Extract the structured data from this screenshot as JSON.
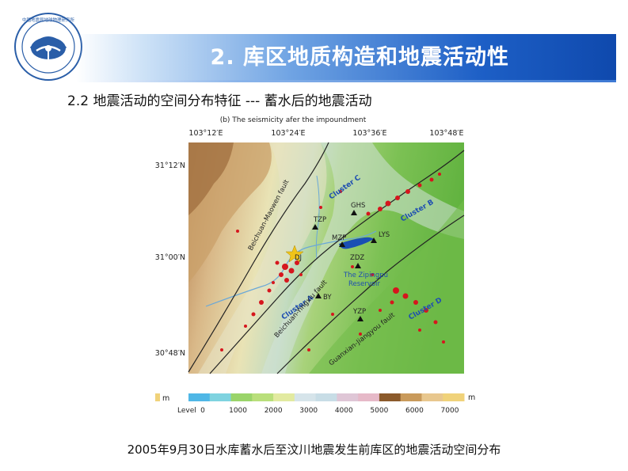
{
  "header": {
    "title": "2. 库区地质构造和地震活动性",
    "logo_text": "中国地震局地球物理研究所"
  },
  "section": {
    "subtitle": "2.2 地震活动的空间分布特征 --- 蓄水后的地震活动"
  },
  "map": {
    "panel_title": "(b) The seismicity afer the impoundment",
    "lon_labels": [
      "103°12′E",
      "103°24′E",
      "103°36′E",
      "103°48′E"
    ],
    "lat_labels": [
      "31°12′N",
      "31°00′N",
      "30°48′N"
    ],
    "clusters": [
      "Cluster C",
      "Cluster B",
      "Cluster A",
      "Cluster D"
    ],
    "stations": [
      "TZP",
      "GHS",
      "MZP",
      "LYS",
      "ZDZ",
      "BY",
      "YZP"
    ],
    "place_labels": [
      "DJ"
    ],
    "reservoir_label_1": "The Zipingpu",
    "reservoir_label_2": "Reservoir",
    "faults": [
      "Beichuan-Maowen fault",
      "Beichuan-Yingxiu fault",
      "Guanxian-Jiangyou fault"
    ],
    "legend": {
      "prefix_unit": "m",
      "level_label": "Level",
      "ticks": [
        "0",
        "1000",
        "2000",
        "3000",
        "4000",
        "5000",
        "6000",
        "7000"
      ],
      "unit": "m",
      "colors": [
        "#4fb7e6",
        "#7fd3e0",
        "#9ad46a",
        "#b9df7b",
        "#e2eaa0",
        "#d6e4ea",
        "#c8dde6",
        "#dfc6d6",
        "#e6b9c8",
        "#8b5a2b",
        "#c99a5b",
        "#e8c78e",
        "#f0d27a"
      ]
    }
  },
  "caption": "2005年9月30日水库蓄水后至汶川地震发生前库区的地震活动空间分布"
}
